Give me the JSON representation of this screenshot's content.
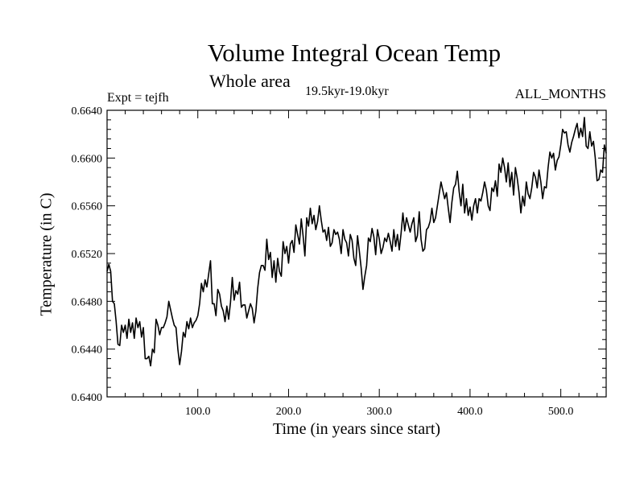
{
  "chart_data": {
    "type": "line",
    "title": "Volume Integral Ocean Temp",
    "subtitle": "Whole area",
    "period_label": "19.5kyr-19.0kyr",
    "experiment_label": "Expt = tejfh",
    "months_label": "ALL_MONTHS",
    "xlabel": "Time (in years since start)",
    "ylabel": "Temperature (in C)",
    "xlim": [
      0,
      550
    ],
    "ylim": [
      0.64,
      0.664
    ],
    "x_ticks": [
      100,
      200,
      300,
      400,
      500
    ],
    "x_tick_labels": [
      "100.0",
      "200.0",
      "300.0",
      "400.0",
      "500.0"
    ],
    "y_ticks": [
      0.64,
      0.644,
      0.648,
      0.652,
      0.656,
      0.66,
      0.664
    ],
    "y_tick_labels": [
      "0.6400",
      "0.6440",
      "0.6480",
      "0.6520",
      "0.6560",
      "0.6600",
      "0.6640"
    ],
    "grid": false,
    "series": [
      {
        "name": "Volume Integral Ocean Temp",
        "color": "#000000",
        "points": [
          [
            0,
            0.6505
          ],
          [
            2,
            0.6511
          ],
          [
            4,
            0.6505
          ],
          [
            6,
            0.648
          ],
          [
            8,
            0.6478
          ],
          [
            10,
            0.6463
          ],
          [
            12,
            0.6444
          ],
          [
            14,
            0.6443
          ],
          [
            16,
            0.646
          ],
          [
            18,
            0.6454
          ],
          [
            20,
            0.646
          ],
          [
            22,
            0.6449
          ],
          [
            24,
            0.6465
          ],
          [
            26,
            0.6454
          ],
          [
            28,
            0.6462
          ],
          [
            30,
            0.6449
          ],
          [
            32,
            0.6466
          ],
          [
            34,
            0.6458
          ],
          [
            36,
            0.6463
          ],
          [
            38,
            0.645
          ],
          [
            40,
            0.6458
          ],
          [
            42,
            0.6432
          ],
          [
            44,
            0.6432
          ],
          [
            46,
            0.6434
          ],
          [
            48,
            0.6426
          ],
          [
            50,
            0.644
          ],
          [
            52,
            0.6437
          ],
          [
            54,
            0.6465
          ],
          [
            56,
            0.646
          ],
          [
            58,
            0.6452
          ],
          [
            60,
            0.6458
          ],
          [
            62,
            0.6458
          ],
          [
            64,
            0.6462
          ],
          [
            66,
            0.6467
          ],
          [
            68,
            0.648
          ],
          [
            70,
            0.6473
          ],
          [
            72,
            0.6466
          ],
          [
            74,
            0.646
          ],
          [
            76,
            0.6458
          ],
          [
            78,
            0.644
          ],
          [
            80,
            0.6427
          ],
          [
            82,
            0.6438
          ],
          [
            84,
            0.6454
          ],
          [
            86,
            0.645
          ],
          [
            88,
            0.6463
          ],
          [
            90,
            0.6457
          ],
          [
            92,
            0.6466
          ],
          [
            94,
            0.6458
          ],
          [
            96,
            0.6462
          ],
          [
            98,
            0.6464
          ],
          [
            100,
            0.6468
          ],
          [
            102,
            0.6478
          ],
          [
            104,
            0.6495
          ],
          [
            106,
            0.6488
          ],
          [
            108,
            0.6498
          ],
          [
            110,
            0.6492
          ],
          [
            112,
            0.6503
          ],
          [
            114,
            0.6514
          ],
          [
            116,
            0.6478
          ],
          [
            118,
            0.6478
          ],
          [
            120,
            0.6468
          ],
          [
            122,
            0.649
          ],
          [
            124,
            0.6486
          ],
          [
            126,
            0.6476
          ],
          [
            128,
            0.6472
          ],
          [
            130,
            0.6463
          ],
          [
            132,
            0.6476
          ],
          [
            134,
            0.6465
          ],
          [
            136,
            0.6479
          ],
          [
            138,
            0.65
          ],
          [
            140,
            0.6481
          ],
          [
            142,
            0.6489
          ],
          [
            144,
            0.6486
          ],
          [
            146,
            0.6496
          ],
          [
            148,
            0.6475
          ],
          [
            150,
            0.6477
          ],
          [
            152,
            0.6477
          ],
          [
            154,
            0.6466
          ],
          [
            156,
            0.6472
          ],
          [
            158,
            0.6478
          ],
          [
            160,
            0.6474
          ],
          [
            162,
            0.6462
          ],
          [
            164,
            0.6472
          ],
          [
            166,
            0.6491
          ],
          [
            168,
            0.6504
          ],
          [
            170,
            0.651
          ],
          [
            172,
            0.651
          ],
          [
            174,
            0.6506
          ],
          [
            176,
            0.6532
          ],
          [
            178,
            0.6515
          ],
          [
            180,
            0.6521
          ],
          [
            182,
            0.65
          ],
          [
            184,
            0.6514
          ],
          [
            186,
            0.6496
          ],
          [
            188,
            0.6516
          ],
          [
            190,
            0.6505
          ],
          [
            192,
            0.6501
          ],
          [
            194,
            0.653
          ],
          [
            196,
            0.652
          ],
          [
            198,
            0.6526
          ],
          [
            200,
            0.6512
          ],
          [
            202,
            0.6528
          ],
          [
            204,
            0.6531
          ],
          [
            206,
            0.6521
          ],
          [
            208,
            0.6544
          ],
          [
            210,
            0.6536
          ],
          [
            212,
            0.6528
          ],
          [
            214,
            0.6549
          ],
          [
            216,
            0.6535
          ],
          [
            218,
            0.6518
          ],
          [
            220,
            0.655
          ],
          [
            222,
            0.6543
          ],
          [
            224,
            0.6558
          ],
          [
            226,
            0.6545
          ],
          [
            228,
            0.6552
          ],
          [
            230,
            0.654
          ],
          [
            232,
            0.6547
          ],
          [
            234,
            0.656
          ],
          [
            236,
            0.6548
          ],
          [
            238,
            0.6538
          ],
          [
            240,
            0.654
          ],
          [
            242,
            0.6531
          ],
          [
            244,
            0.6542
          ],
          [
            246,
            0.6526
          ],
          [
            248,
            0.6529
          ],
          [
            250,
            0.654
          ],
          [
            252,
            0.6536
          ],
          [
            254,
            0.6538
          ],
          [
            256,
            0.6532
          ],
          [
            258,
            0.652
          ],
          [
            260,
            0.654
          ],
          [
            262,
            0.6532
          ],
          [
            264,
            0.6529
          ],
          [
            266,
            0.6518
          ],
          [
            268,
            0.6536
          ],
          [
            270,
            0.6531
          ],
          [
            272,
            0.6516
          ],
          [
            274,
            0.651
          ],
          [
            276,
            0.6535
          ],
          [
            278,
            0.6522
          ],
          [
            280,
            0.6508
          ],
          [
            282,
            0.649
          ],
          [
            284,
            0.6501
          ],
          [
            286,
            0.651
          ],
          [
            288,
            0.6533
          ],
          [
            290,
            0.653
          ],
          [
            292,
            0.6541
          ],
          [
            294,
            0.6534
          ],
          [
            296,
            0.6519
          ],
          [
            298,
            0.654
          ],
          [
            300,
            0.6532
          ],
          [
            302,
            0.652
          ],
          [
            304,
            0.6525
          ],
          [
            306,
            0.6533
          ],
          [
            308,
            0.653
          ],
          [
            310,
            0.6537
          ],
          [
            312,
            0.653
          ],
          [
            314,
            0.6522
          ],
          [
            316,
            0.654
          ],
          [
            318,
            0.6526
          ],
          [
            320,
            0.6536
          ],
          [
            322,
            0.6523
          ],
          [
            324,
            0.6537
          ],
          [
            326,
            0.6554
          ],
          [
            328,
            0.6539
          ],
          [
            330,
            0.655
          ],
          [
            332,
            0.6544
          ],
          [
            334,
            0.6538
          ],
          [
            336,
            0.6545
          ],
          [
            338,
            0.655
          ],
          [
            340,
            0.653
          ],
          [
            342,
            0.6535
          ],
          [
            344,
            0.6555
          ],
          [
            346,
            0.6532
          ],
          [
            348,
            0.6522
          ],
          [
            350,
            0.6524
          ],
          [
            352,
            0.654
          ],
          [
            354,
            0.6542
          ],
          [
            356,
            0.6547
          ],
          [
            358,
            0.6558
          ],
          [
            360,
            0.6546
          ],
          [
            362,
            0.655
          ],
          [
            364,
            0.656
          ],
          [
            366,
            0.657
          ],
          [
            368,
            0.658
          ],
          [
            370,
            0.6573
          ],
          [
            372,
            0.6566
          ],
          [
            374,
            0.6571
          ],
          [
            376,
            0.6558
          ],
          [
            378,
            0.6546
          ],
          [
            380,
            0.6563
          ],
          [
            382,
            0.6575
          ],
          [
            384,
            0.6578
          ],
          [
            386,
            0.6589
          ],
          [
            388,
            0.6572
          ],
          [
            390,
            0.656
          ],
          [
            392,
            0.6578
          ],
          [
            394,
            0.6554
          ],
          [
            396,
            0.6566
          ],
          [
            398,
            0.6552
          ],
          [
            400,
            0.6559
          ],
          [
            402,
            0.6548
          ],
          [
            404,
            0.656
          ],
          [
            406,
            0.6566
          ],
          [
            408,
            0.6554
          ],
          [
            410,
            0.6566
          ],
          [
            412,
            0.6564
          ],
          [
            414,
            0.6571
          ],
          [
            416,
            0.658
          ],
          [
            418,
            0.6573
          ],
          [
            420,
            0.656
          ],
          [
            422,
            0.6556
          ],
          [
            424,
            0.6575
          ],
          [
            426,
            0.6572
          ],
          [
            428,
            0.6581
          ],
          [
            430,
            0.6568
          ],
          [
            432,
            0.6595
          ],
          [
            434,
            0.6588
          ],
          [
            436,
            0.66
          ],
          [
            438,
            0.6592
          ],
          [
            440,
            0.658
          ],
          [
            442,
            0.6596
          ],
          [
            444,
            0.6576
          ],
          [
            446,
            0.6588
          ],
          [
            448,
            0.6569
          ],
          [
            450,
            0.6592
          ],
          [
            452,
            0.6583
          ],
          [
            454,
            0.6571
          ],
          [
            456,
            0.6554
          ],
          [
            458,
            0.6568
          ],
          [
            460,
            0.656
          ],
          [
            462,
            0.658
          ],
          [
            464,
            0.657
          ],
          [
            466,
            0.6566
          ],
          [
            468,
            0.6575
          ],
          [
            470,
            0.6588
          ],
          [
            472,
            0.6584
          ],
          [
            474,
            0.6575
          ],
          [
            476,
            0.659
          ],
          [
            478,
            0.658
          ],
          [
            480,
            0.6566
          ],
          [
            482,
            0.6576
          ],
          [
            484,
            0.6575
          ],
          [
            486,
            0.6592
          ],
          [
            488,
            0.6605
          ],
          [
            490,
            0.66
          ],
          [
            492,
            0.6604
          ],
          [
            494,
            0.659
          ],
          [
            496,
            0.6598
          ],
          [
            498,
            0.6601
          ],
          [
            500,
            0.6611
          ],
          [
            502,
            0.6624
          ],
          [
            504,
            0.6621
          ],
          [
            506,
            0.6622
          ],
          [
            508,
            0.6611
          ],
          [
            510,
            0.6605
          ],
          [
            512,
            0.6613
          ],
          [
            514,
            0.6618
          ],
          [
            516,
            0.6624
          ],
          [
            518,
            0.6629
          ],
          [
            520,
            0.6617
          ],
          [
            522,
            0.6625
          ],
          [
            524,
            0.6618
          ],
          [
            526,
            0.6634
          ],
          [
            528,
            0.661
          ],
          [
            530,
            0.6608
          ],
          [
            532,
            0.6622
          ],
          [
            534,
            0.661
          ],
          [
            536,
            0.6614
          ],
          [
            538,
            0.66
          ],
          [
            540,
            0.6581
          ],
          [
            542,
            0.6582
          ],
          [
            544,
            0.659
          ],
          [
            546,
            0.6588
          ],
          [
            548,
            0.6611
          ],
          [
            550,
            0.6604
          ]
        ]
      }
    ]
  }
}
